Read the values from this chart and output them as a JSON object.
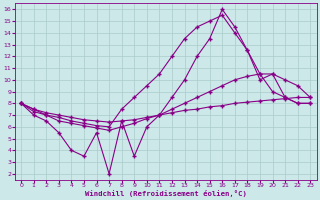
{
  "background_color": "#cce8e8",
  "line_color": "#880088",
  "grid_color": "#aacccc",
  "xlabel": "Windchill (Refroidissement éolien,°C)",
  "xlabel_color": "#880088",
  "tick_color": "#880088",
  "xlim": [
    -0.5,
    23.5
  ],
  "ylim": [
    1.5,
    16.5
  ],
  "xticks": [
    0,
    1,
    2,
    3,
    4,
    5,
    6,
    7,
    8,
    9,
    10,
    11,
    12,
    13,
    14,
    15,
    16,
    17,
    18,
    19,
    20,
    21,
    22,
    23
  ],
  "yticks": [
    2,
    3,
    4,
    5,
    6,
    7,
    8,
    9,
    10,
    11,
    12,
    13,
    14,
    15,
    16
  ],
  "line1_x": [
    0,
    1,
    2,
    3,
    4,
    5,
    6,
    7,
    8,
    9,
    10,
    11,
    12,
    13,
    14,
    15,
    16,
    17,
    18,
    19,
    20,
    21,
    22,
    23
  ],
  "line1_y": [
    8.0,
    7.5,
    7.2,
    7.0,
    6.8,
    6.6,
    6.5,
    6.4,
    6.5,
    6.6,
    6.8,
    7.0,
    7.2,
    7.4,
    7.5,
    7.7,
    7.8,
    8.0,
    8.1,
    8.2,
    8.3,
    8.4,
    8.5,
    8.5
  ],
  "line2_x": [
    0,
    1,
    2,
    3,
    4,
    5,
    6,
    7,
    8,
    9,
    10,
    11,
    12,
    13,
    14,
    15,
    16,
    17,
    18,
    19,
    20,
    21,
    22,
    23
  ],
  "line2_y": [
    8.0,
    7.3,
    7.0,
    6.5,
    6.3,
    6.1,
    5.9,
    5.7,
    6.0,
    6.3,
    6.7,
    7.0,
    7.5,
    8.0,
    8.5,
    9.0,
    9.5,
    10.0,
    10.3,
    10.5,
    10.5,
    10.0,
    9.5,
    8.5
  ],
  "line3_x": [
    0,
    1,
    2,
    3,
    4,
    5,
    6,
    7,
    8,
    9,
    10,
    11,
    12,
    13,
    14,
    15,
    16,
    17,
    18,
    19,
    20,
    21,
    22,
    23
  ],
  "line3_y": [
    8.0,
    7.5,
    7.0,
    6.8,
    6.5,
    6.3,
    6.1,
    6.0,
    7.5,
    8.5,
    9.5,
    10.5,
    12.0,
    13.5,
    14.5,
    15.0,
    15.5,
    14.0,
    12.5,
    10.5,
    9.0,
    8.5,
    8.0,
    8.0
  ],
  "line4_x": [
    0,
    1,
    2,
    3,
    4,
    5,
    6,
    7,
    8,
    9,
    10,
    11,
    12,
    13,
    14,
    15,
    16,
    17,
    18,
    19,
    20,
    21,
    22,
    23
  ],
  "line4_y": [
    8.0,
    7.0,
    6.5,
    5.5,
    4.0,
    3.5,
    5.5,
    2.0,
    6.5,
    3.5,
    6.0,
    7.0,
    8.5,
    10.0,
    12.0,
    13.5,
    16.0,
    14.5,
    12.5,
    10.0,
    10.5,
    8.5,
    8.0,
    8.0
  ],
  "marker": "+"
}
